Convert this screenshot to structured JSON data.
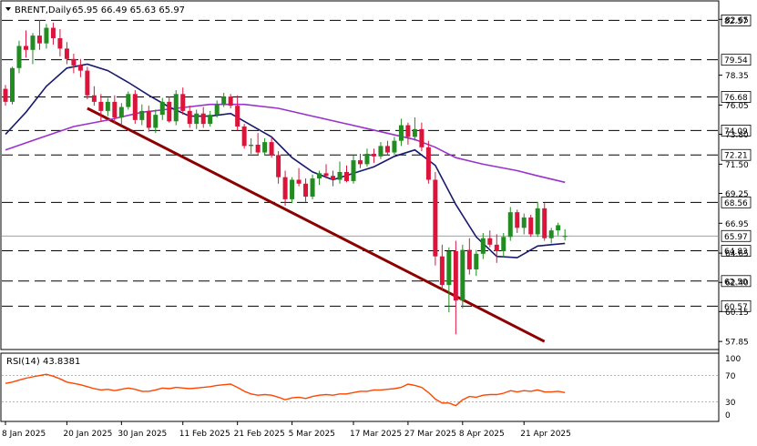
{
  "chart_data": [
    {
      "type": "candlestick",
      "header": {
        "symbol": "BRENT,Daily",
        "ohlc": "65.95 66.49 65.63 65.97"
      },
      "y_axis_ticks": [
        82.65,
        78.35,
        76.05,
        73.8,
        71.5,
        69.25,
        66.95,
        64.65,
        62.4,
        60.15,
        57.85
      ],
      "ylim": [
        57.3,
        84.0
      ],
      "level_lines": [
        82.57,
        79.54,
        76.68,
        74.09,
        72.21,
        68.56,
        64.83,
        62.5,
        60.57
      ],
      "current_price": 65.97,
      "x_labels": [
        {
          "index": 0,
          "label": "8 Jan 2025"
        },
        {
          "index": 9,
          "label": "20 Jan 2025"
        },
        {
          "index": 17,
          "label": "30 Jan 2025"
        },
        {
          "index": 26,
          "label": "11 Feb 2025"
        },
        {
          "index": 34,
          "label": "21 Feb 2025"
        },
        {
          "index": 42,
          "label": "5 Mar 2025"
        },
        {
          "index": 51,
          "label": "17 Mar 2025"
        },
        {
          "index": 59,
          "label": "27 Mar 2025"
        },
        {
          "index": 67,
          "label": "8 Apr 2025"
        },
        {
          "index": 76,
          "label": "21 Apr 2025"
        }
      ],
      "candles": [
        [
          77.3,
          77.6,
          76.0,
          76.3
        ],
        [
          76.3,
          79.0,
          76.1,
          78.9
        ],
        [
          78.9,
          81.0,
          78.5,
          80.6
        ],
        [
          80.6,
          81.8,
          79.7,
          80.3
        ],
        [
          80.3,
          81.6,
          79.2,
          81.4
        ],
        [
          81.4,
          82.6,
          80.3,
          80.8
        ],
        [
          80.8,
          82.3,
          80.4,
          82.0
        ],
        [
          82.0,
          82.4,
          80.7,
          81.2
        ],
        [
          81.2,
          81.9,
          79.8,
          80.4
        ],
        [
          80.4,
          80.9,
          79.2,
          79.6
        ],
        [
          79.6,
          80.0,
          78.5,
          79.1
        ],
        [
          79.1,
          79.6,
          78.2,
          78.7
        ],
        [
          78.7,
          79.0,
          76.5,
          76.8
        ],
        [
          76.8,
          77.5,
          76.0,
          76.3
        ],
        [
          76.3,
          76.9,
          74.8,
          75.6
        ],
        [
          75.6,
          76.6,
          75.2,
          76.3
        ],
        [
          76.3,
          76.8,
          74.6,
          75.1
        ],
        [
          75.1,
          76.2,
          74.5,
          75.9
        ],
        [
          75.9,
          77.1,
          75.7,
          76.9
        ],
        [
          76.9,
          77.2,
          74.6,
          74.9
        ],
        [
          74.9,
          76.1,
          74.5,
          75.6
        ],
        [
          75.6,
          76.0,
          74.0,
          74.3
        ],
        [
          74.3,
          75.7,
          73.9,
          75.3
        ],
        [
          75.3,
          76.6,
          74.9,
          76.3
        ],
        [
          76.3,
          76.7,
          74.7,
          74.8
        ],
        [
          74.8,
          77.2,
          74.5,
          76.9
        ],
        [
          76.9,
          77.4,
          75.3,
          75.6
        ],
        [
          75.6,
          76.0,
          74.3,
          74.6
        ],
        [
          74.6,
          75.7,
          74.2,
          75.4
        ],
        [
          75.4,
          75.9,
          74.3,
          74.6
        ],
        [
          74.6,
          75.6,
          74.4,
          75.3
        ],
        [
          75.3,
          76.4,
          75.1,
          76.1
        ],
        [
          76.1,
          77.0,
          75.9,
          76.7
        ],
        [
          76.7,
          76.9,
          75.8,
          76.0
        ],
        [
          76.0,
          76.8,
          74.1,
          74.4
        ],
        [
          74.4,
          74.6,
          72.7,
          72.9
        ],
        [
          72.9,
          73.5,
          72.3,
          73.0
        ],
        [
          73.0,
          73.9,
          72.2,
          72.4
        ],
        [
          72.4,
          73.5,
          72.2,
          73.2
        ],
        [
          73.2,
          73.6,
          72.0,
          72.2
        ],
        [
          72.2,
          72.5,
          70.0,
          70.5
        ],
        [
          70.5,
          71.0,
          68.3,
          68.8
        ],
        [
          68.8,
          70.5,
          68.5,
          70.3
        ],
        [
          70.3,
          71.2,
          69.8,
          70.0
        ],
        [
          70.0,
          70.4,
          68.6,
          69.0
        ],
        [
          69.0,
          70.7,
          68.8,
          70.4
        ],
        [
          70.4,
          71.0,
          69.9,
          70.8
        ],
        [
          70.8,
          71.5,
          70.4,
          70.6
        ],
        [
          70.6,
          71.0,
          69.8,
          70.3
        ],
        [
          70.3,
          71.7,
          70.0,
          70.9
        ],
        [
          70.9,
          71.4,
          70.1,
          70.2
        ],
        [
          70.2,
          72.2,
          70.0,
          71.8
        ],
        [
          71.8,
          72.3,
          71.2,
          71.5
        ],
        [
          71.5,
          72.7,
          71.3,
          72.3
        ],
        [
          72.3,
          72.7,
          71.6,
          72.1
        ],
        [
          72.1,
          73.2,
          71.9,
          72.9
        ],
        [
          72.9,
          73.3,
          72.2,
          72.4
        ],
        [
          72.4,
          73.6,
          72.2,
          73.3
        ],
        [
          73.3,
          75.0,
          72.9,
          74.5
        ],
        [
          74.5,
          74.7,
          73.0,
          73.6
        ],
        [
          73.6,
          75.1,
          73.3,
          74.2
        ],
        [
          74.2,
          74.7,
          72.5,
          72.8
        ],
        [
          72.8,
          73.3,
          70.0,
          70.3
        ],
        [
          70.3,
          70.9,
          63.7,
          64.4
        ],
        [
          64.4,
          65.3,
          61.8,
          62.2
        ],
        [
          62.2,
          65.1,
          60.1,
          64.8
        ],
        [
          64.8,
          65.6,
          58.4,
          61.0
        ],
        [
          61.0,
          65.3,
          60.4,
          64.9
        ],
        [
          64.9,
          65.8,
          63.0,
          63.4
        ],
        [
          63.4,
          64.9,
          62.9,
          64.6
        ],
        [
          64.6,
          66.2,
          64.2,
          65.8
        ],
        [
          65.8,
          66.4,
          65.1,
          65.3
        ],
        [
          65.3,
          66.1,
          63.9,
          64.8
        ],
        [
          64.8,
          66.2,
          64.3,
          65.9
        ],
        [
          65.9,
          68.2,
          65.6,
          67.8
        ],
        [
          67.8,
          68.0,
          66.2,
          66.6
        ],
        [
          66.6,
          67.7,
          66.1,
          67.4
        ],
        [
          67.4,
          67.6,
          65.9,
          66.1
        ],
        [
          66.1,
          68.6,
          65.9,
          68.1
        ],
        [
          68.1,
          68.5,
          65.6,
          65.8
        ],
        [
          65.8,
          66.6,
          65.4,
          66.4
        ],
        [
          66.4,
          67.0,
          66.0,
          66.8
        ],
        [
          65.95,
          66.49,
          65.63,
          65.97
        ]
      ],
      "sma_fast": [
        [
          0,
          73.8
        ],
        [
          3,
          75.5
        ],
        [
          6,
          77.5
        ],
        [
          9,
          78.9
        ],
        [
          12,
          79.2
        ],
        [
          15,
          78.7
        ],
        [
          18,
          77.8
        ],
        [
          21,
          76.8
        ],
        [
          24,
          75.9
        ],
        [
          27,
          75.2
        ],
        [
          30,
          75.2
        ],
        [
          33,
          75.4
        ],
        [
          36,
          74.5
        ],
        [
          39,
          73.6
        ],
        [
          42,
          72.0
        ],
        [
          45,
          70.9
        ],
        [
          48,
          70.3
        ],
        [
          51,
          70.8
        ],
        [
          54,
          71.3
        ],
        [
          57,
          72.1
        ],
        [
          60,
          72.6
        ],
        [
          63,
          71.4
        ],
        [
          66,
          68.4
        ],
        [
          69,
          65.9
        ],
        [
          72,
          64.4
        ],
        [
          75,
          64.3
        ],
        [
          78,
          65.2
        ],
        [
          80,
          65.3
        ],
        [
          82,
          65.4
        ]
      ],
      "sma_slow": [
        [
          0,
          72.6
        ],
        [
          5,
          73.5
        ],
        [
          10,
          74.4
        ],
        [
          15,
          74.9
        ],
        [
          20,
          75.5
        ],
        [
          25,
          75.8
        ],
        [
          30,
          76.1
        ],
        [
          35,
          76.1
        ],
        [
          40,
          75.8
        ],
        [
          45,
          75.2
        ],
        [
          50,
          74.6
        ],
        [
          55,
          74.0
        ],
        [
          60,
          73.4
        ],
        [
          63,
          72.8
        ],
        [
          66,
          72.0
        ],
        [
          70,
          71.5
        ],
        [
          75,
          71.0
        ],
        [
          78,
          70.6
        ],
        [
          82,
          70.1
        ]
      ],
      "trendline": [
        [
          12,
          75.8
        ],
        [
          79,
          57.85
        ]
      ],
      "rsi": {
        "label": "RSI(14) 43.8381",
        "ticks": [
          100,
          70,
          30,
          0
        ],
        "levels": [
          70,
          30
        ],
        "values": [
          58,
          60,
          63,
          66,
          68,
          70,
          72,
          69,
          65,
          60,
          58,
          56,
          53,
          50,
          48,
          49,
          47,
          49,
          51,
          49,
          46,
          46,
          48,
          51,
          50,
          52,
          51,
          50,
          51,
          52,
          53,
          55,
          56,
          57,
          52,
          46,
          42,
          40,
          41,
          40,
          37,
          33,
          36,
          37,
          35,
          38,
          40,
          41,
          40,
          42,
          42,
          44,
          46,
          46,
          48,
          48,
          49,
          50,
          52,
          57,
          55,
          52,
          44,
          34,
          28,
          28,
          24,
          33,
          38,
          37,
          40,
          41,
          41,
          43,
          47,
          45,
          47,
          46,
          48,
          45,
          45,
          46,
          44
        ]
      }
    }
  ]
}
